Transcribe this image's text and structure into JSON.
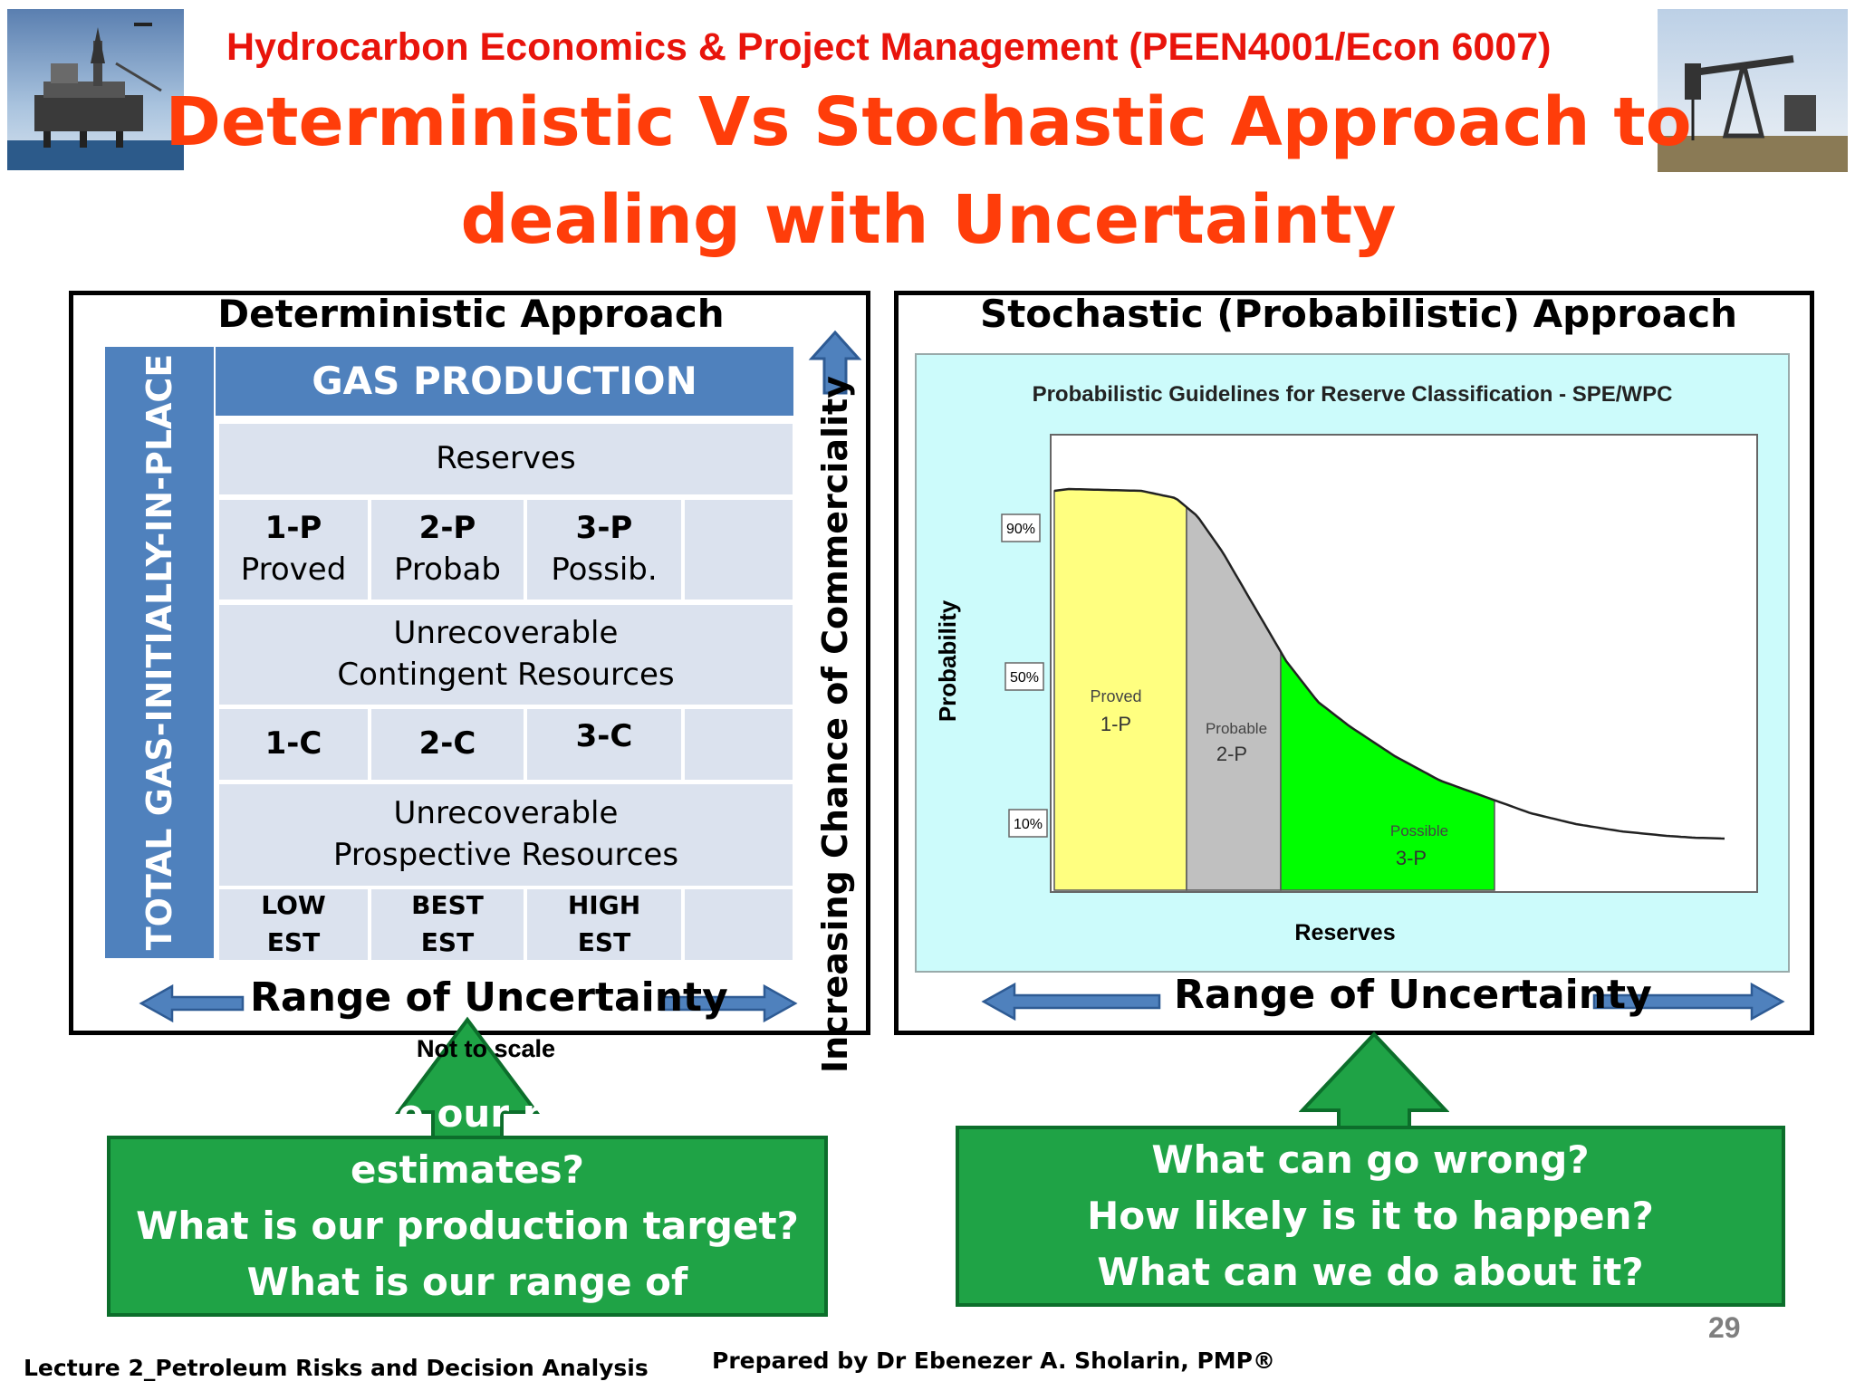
{
  "header": {
    "course": "Hydrocarbon Economics & Project Management  (PEEN4001/Econ 6007)",
    "title_line1": "Deterministic Vs Stochastic Approach to",
    "title_line2": "dealing with Uncertainty"
  },
  "images": {
    "left": "offshore-oil-platform-photo",
    "right": "oil-pumpjack-photo"
  },
  "deterministic": {
    "title": "Deterministic Approach",
    "side_label": "TOTAL GAS-INITIALLY-IN-PLACE",
    "header": "GAS PRODUCTION",
    "reserves_label": "Reserves",
    "reserves": [
      {
        "code": "1-P",
        "name": "Proved"
      },
      {
        "code": "2-P",
        "name": "Probab"
      },
      {
        "code": "3-P",
        "name": "Possib."
      }
    ],
    "contingent_line1": "Unrecoverable",
    "contingent_line2": "Contingent Resources",
    "contingent": [
      "1-C",
      "2-C",
      "3-C"
    ],
    "prospective_line1": "Unrecoverable",
    "prospective_line2": "Prospective Resources",
    "estimates": [
      {
        "line1": "LOW",
        "line2": "EST"
      },
      {
        "line1": "BEST",
        "line2": "EST"
      },
      {
        "line1": "HIGH",
        "line2": "EST"
      }
    ],
    "commerciality_label": "Increasing Chance of Commerciality",
    "range_label": "Range of Uncertainty",
    "note": "Not to scale"
  },
  "stochastic": {
    "title": "Stochastic (Probabilistic) Approach",
    "range_label": "Range of Uncertainty"
  },
  "chart_data": {
    "type": "area",
    "title": "Probabilistic Guidelines for Reserve Classification - SPE/WPC",
    "xlabel": "Reserves",
    "ylabel": "Probability",
    "yticks": [
      "90%",
      "50%",
      "10%"
    ],
    "regions": [
      {
        "name": "Proved",
        "code": "1-P",
        "color": "#ffff80"
      },
      {
        "name": "Probable",
        "code": "2-P",
        "color": "#c0c0c0"
      },
      {
        "name": "Possible",
        "code": "3-P",
        "color": "#00ff00"
      }
    ],
    "grid": false,
    "legend": "none"
  },
  "questions": {
    "left": [
      "What are our reserves estimates?",
      "What is our production target?",
      "What is our range of uncertainty?"
    ],
    "right": [
      "What can go wrong?",
      "How likely is it to happen?",
      "What can we do about it?"
    ]
  },
  "footer": {
    "lecture": "Lecture 2_Petroleum Risks and Decision Analysis",
    "prepared_by": "Prepared by Dr Ebenezer A. Sholarin, PMP®",
    "page": "29"
  },
  "colors": {
    "title": "#ff3d0a",
    "course": "#e8140c",
    "blue": "#4f81bd",
    "cell": "#dbe2ee",
    "green": "#1fa346"
  }
}
